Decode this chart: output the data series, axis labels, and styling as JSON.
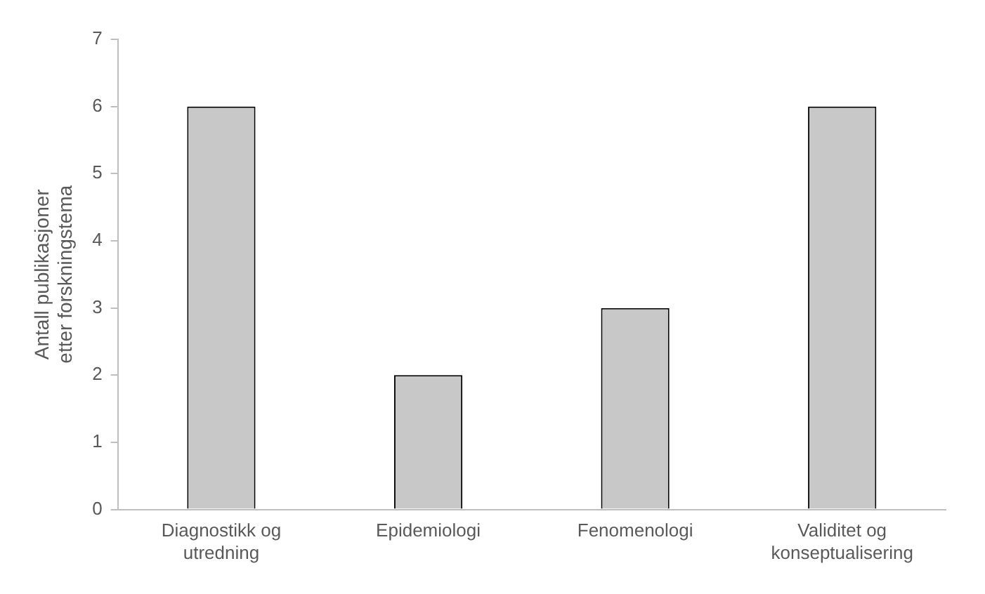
{
  "chart_data": {
    "type": "bar",
    "ylabel": "Antall publikasjoner etter forskningstema",
    "categories": [
      "Diagnostikk og utredning",
      "Epidemiologi",
      "Fenomenologi",
      "Validitet og konseptualisering"
    ],
    "values": [
      6,
      2,
      3,
      6
    ],
    "color": "#c8c8c8",
    "ylim": [
      0,
      7
    ],
    "yticks": [
      0,
      1,
      2,
      3,
      4,
      5,
      6,
      7
    ],
    "grid": false,
    "legend": false
  }
}
